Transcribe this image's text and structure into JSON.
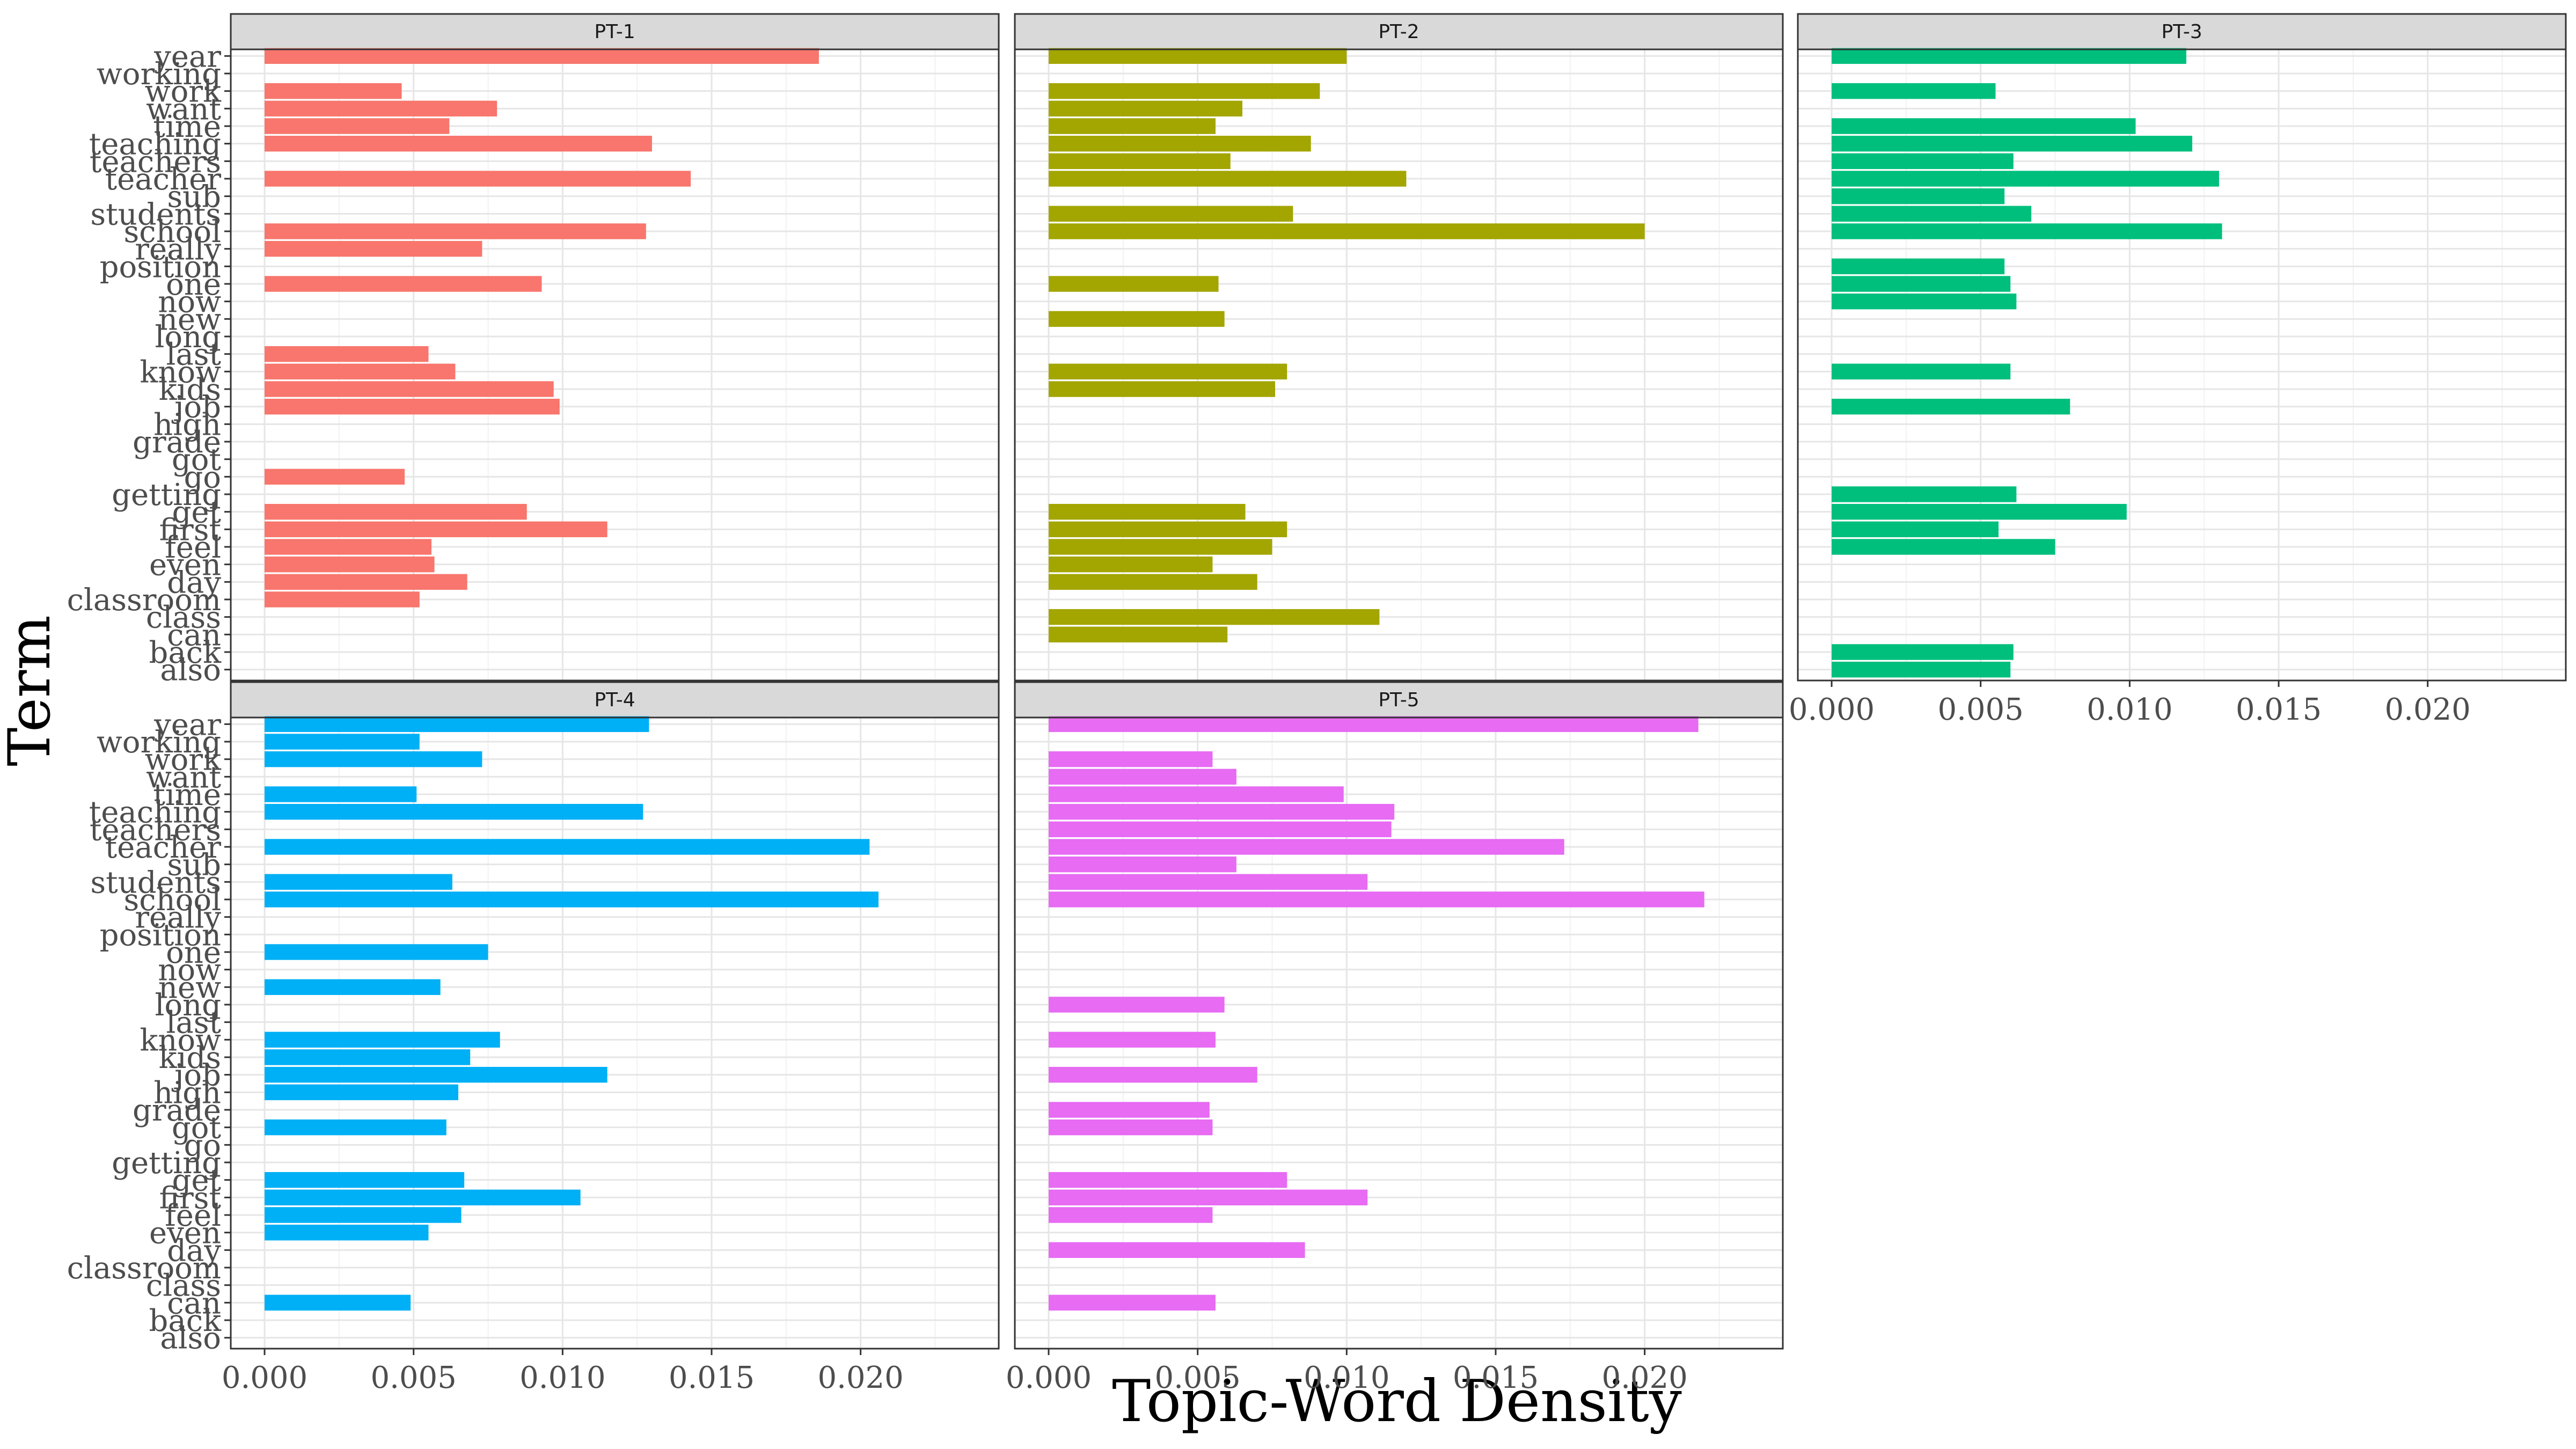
{
  "chart_data": {
    "type": "bar",
    "orientation": "horizontal",
    "facet_layout": "2 rows x 3 columns",
    "xlabel": "Topic-Word Density",
    "ylabel": "Term",
    "xlim": [
      0,
      0.0235
    ],
    "x_ticks": [
      "0.000",
      "0.005",
      "0.010",
      "0.015",
      "0.020"
    ],
    "x_tick_values": [
      0,
      0.005,
      0.01,
      0.015,
      0.02
    ],
    "grid": true,
    "categories": [
      "year",
      "working",
      "work",
      "want",
      "time",
      "teaching",
      "teachers",
      "teacher",
      "sub",
      "students",
      "school",
      "really",
      "position",
      "one",
      "now",
      "new",
      "long",
      "last",
      "know",
      "kids",
      "job",
      "high",
      "grade",
      "got",
      "go",
      "getting",
      "get",
      "first",
      "feel",
      "even",
      "day",
      "classroom",
      "class",
      "can",
      "back",
      "also"
    ],
    "facets": [
      {
        "name": "PT-1",
        "color": "#F8766D",
        "values": [
          0.0186,
          0,
          0.0046,
          0.0078,
          0.0062,
          0.013,
          0,
          0.0143,
          0,
          0,
          0.0128,
          0.0073,
          0,
          0.0093,
          0,
          0,
          0,
          0.0055,
          0.0064,
          0.0097,
          0.0099,
          0,
          0,
          0,
          0.0047,
          0,
          0.0088,
          0.0115,
          0.0056,
          0.0057,
          0.0068,
          0.0052,
          0,
          0,
          0,
          0
        ]
      },
      {
        "name": "PT-2",
        "color": "#A3A500",
        "values": [
          0.01,
          0,
          0.0091,
          0.0065,
          0.0056,
          0.0088,
          0.0061,
          0.012,
          0,
          0.0082,
          0.02,
          0,
          0,
          0.0057,
          0,
          0.0059,
          0,
          0,
          0.008,
          0.0076,
          0,
          0,
          0,
          0,
          0,
          0,
          0.0066,
          0.008,
          0.0075,
          0.0055,
          0.007,
          0,
          0.0111,
          0.006,
          0,
          0
        ]
      },
      {
        "name": "PT-3",
        "color": "#00BF7D",
        "values": [
          0.0119,
          0,
          0.0055,
          0,
          0.0102,
          0.0121,
          0.0061,
          0.013,
          0.0058,
          0.0067,
          0.0131,
          0,
          0.0058,
          0.006,
          0.0062,
          0,
          0,
          0,
          0.006,
          0,
          0.008,
          0,
          0,
          0,
          0,
          0.0062,
          0.0099,
          0.0056,
          0.0075,
          0,
          0,
          0,
          0,
          0,
          0.0061,
          0.006
        ]
      },
      {
        "name": "PT-4",
        "color": "#00B0F6",
        "values": [
          0.0129,
          0.0052,
          0.0073,
          0,
          0.0051,
          0.0127,
          0,
          0.0203,
          0,
          0.0063,
          0.0206,
          0,
          0,
          0.0075,
          0,
          0.0059,
          0,
          0,
          0.0079,
          0.0069,
          0.0115,
          0.0065,
          0,
          0.0061,
          0,
          0,
          0.0067,
          0.0106,
          0.0066,
          0.0055,
          0,
          0,
          0,
          0.0049,
          0,
          0
        ]
      },
      {
        "name": "PT-5",
        "color": "#E76BF3",
        "values": [
          0.0218,
          0,
          0.0055,
          0.0063,
          0.0099,
          0.0116,
          0.0115,
          0.0173,
          0.0063,
          0.0107,
          0.022,
          0,
          0,
          0,
          0,
          0,
          0.0059,
          0,
          0.0056,
          0,
          0.007,
          0,
          0.0054,
          0.0055,
          0,
          0,
          0.008,
          0.0107,
          0.0055,
          0,
          0.0086,
          0,
          0,
          0.0056,
          0,
          0
        ]
      }
    ]
  }
}
